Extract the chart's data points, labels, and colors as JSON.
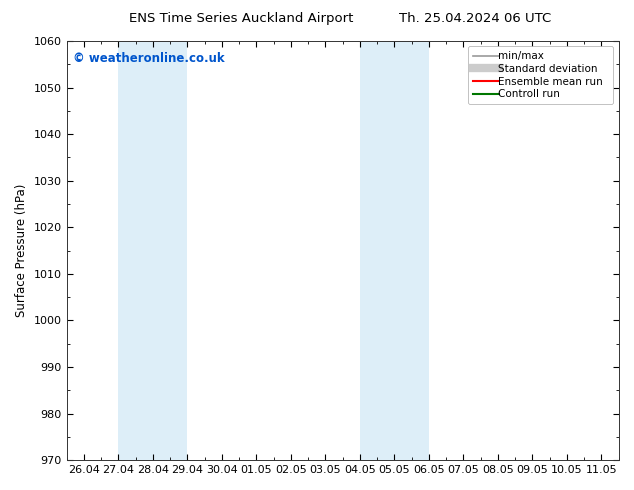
{
  "title_left": "ENS Time Series Auckland Airport",
  "title_right": "Th. 25.04.2024 06 UTC",
  "ylabel": "Surface Pressure (hPa)",
  "ylim": [
    970,
    1060
  ],
  "yticks": [
    970,
    980,
    990,
    1000,
    1010,
    1020,
    1030,
    1040,
    1050,
    1060
  ],
  "xtick_labels": [
    "26.04",
    "27.04",
    "28.04",
    "29.04",
    "30.04",
    "01.05",
    "02.05",
    "03.05",
    "04.05",
    "05.05",
    "06.05",
    "07.05",
    "08.05",
    "09.05",
    "10.05",
    "11.05"
  ],
  "xtick_positions": [
    0,
    1,
    2,
    3,
    4,
    5,
    6,
    7,
    8,
    9,
    10,
    11,
    12,
    13,
    14,
    15
  ],
  "xlim": [
    -0.5,
    15.5
  ],
  "shaded_bands": [
    {
      "xmin": 1,
      "xmax": 3,
      "color": "#ddeef8"
    },
    {
      "xmin": 8,
      "xmax": 10,
      "color": "#ddeef8"
    }
  ],
  "copyright_text": "© weatheronline.co.uk",
  "copyright_color": "#0055cc",
  "bg_color": "#ffffff",
  "legend_items": [
    {
      "label": "min/max",
      "color": "#999999",
      "lw": 1.2
    },
    {
      "label": "Standard deviation",
      "color": "#cccccc",
      "lw": 6
    },
    {
      "label": "Ensemble mean run",
      "color": "#ff0000",
      "lw": 1.5
    },
    {
      "label": "Controll run",
      "color": "#007700",
      "lw": 1.5
    }
  ],
  "tick_label_fontsize": 8,
  "ylabel_fontsize": 8.5,
  "title_fontsize": 9.5,
  "legend_fontsize": 7.5,
  "copyright_fontsize": 8.5
}
